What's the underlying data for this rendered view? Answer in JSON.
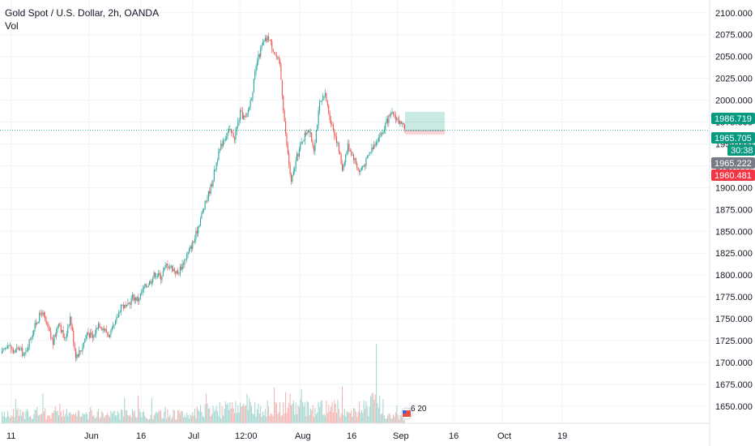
{
  "legend": {
    "symbol": "Gold Spot / U.S. Dollar, 2h, OANDA",
    "indicator": "Vol"
  },
  "chart_data": {
    "type": "candlestick",
    "ylim": [
      1635,
      2110
    ],
    "y_ticks": [
      1650,
      1675,
      1700,
      1725,
      1750,
      1775,
      1800,
      1825,
      1850,
      1875,
      1900,
      1925,
      1950,
      1975,
      2000,
      2025,
      2050,
      2075,
      2100
    ],
    "y_tick_labels": [
      "1650.000",
      "1675.000",
      "1700.000",
      "1725.000",
      "1750.000",
      "1775.000",
      "1800.000",
      "1825.000",
      "1850.000",
      "1875.000",
      "1900.000",
      "1925.000",
      "1950.000",
      "1975.000",
      "2000.000",
      "2025.000",
      "2050.000",
      "2075.000",
      "2100.000"
    ],
    "x_labels": [
      "11",
      "Jun",
      "16",
      "Jul",
      "12:00",
      "Aug",
      "16",
      "Sep",
      "16",
      "Oct",
      "19"
    ],
    "price_path": [
      [
        0,
        1710
      ],
      [
        5,
        1722
      ],
      [
        10,
        1712
      ],
      [
        15,
        1716
      ],
      [
        20,
        1708
      ],
      [
        25,
        1728
      ],
      [
        30,
        1745
      ],
      [
        35,
        1758
      ],
      [
        40,
        1740
      ],
      [
        45,
        1722
      ],
      [
        50,
        1748
      ],
      [
        55,
        1725
      ],
      [
        60,
        1752
      ],
      [
        65,
        1708
      ],
      [
        70,
        1715
      ],
      [
        75,
        1735
      ],
      [
        80,
        1728
      ],
      [
        85,
        1745
      ],
      [
        90,
        1738
      ],
      [
        95,
        1730
      ],
      [
        100,
        1745
      ],
      [
        105,
        1766
      ],
      [
        110,
        1762
      ],
      [
        115,
        1775
      ],
      [
        120,
        1772
      ],
      [
        125,
        1785
      ],
      [
        130,
        1792
      ],
      [
        135,
        1802
      ],
      [
        140,
        1798
      ],
      [
        145,
        1812
      ],
      [
        150,
        1808
      ],
      [
        155,
        1802
      ],
      [
        160,
        1815
      ],
      [
        165,
        1828
      ],
      [
        170,
        1842
      ],
      [
        175,
        1865
      ],
      [
        180,
        1885
      ],
      [
        185,
        1905
      ],
      [
        190,
        1935
      ],
      [
        195,
        1955
      ],
      [
        200,
        1965
      ],
      [
        205,
        1958
      ],
      [
        210,
        1985
      ],
      [
        215,
        1978
      ],
      [
        220,
        2005
      ],
      [
        225,
        2045
      ],
      [
        230,
        2065
      ],
      [
        235,
        2072
      ],
      [
        240,
        2055
      ],
      [
        245,
        2040
      ],
      [
        250,
        1960
      ],
      [
        255,
        1905
      ],
      [
        260,
        1935
      ],
      [
        265,
        1955
      ],
      [
        270,
        1968
      ],
      [
        275,
        1945
      ],
      [
        280,
        1995
      ],
      [
        285,
        2005
      ],
      [
        290,
        1975
      ],
      [
        295,
        1955
      ],
      [
        300,
        1922
      ],
      [
        305,
        1948
      ],
      [
        310,
        1935
      ],
      [
        315,
        1918
      ],
      [
        320,
        1928
      ],
      [
        325,
        1942
      ],
      [
        330,
        1955
      ],
      [
        335,
        1962
      ],
      [
        340,
        1978
      ],
      [
        345,
        1985
      ],
      [
        350,
        1975
      ],
      [
        355,
        1966
      ]
    ],
    "volume_path": [
      [
        0,
        0.3
      ],
      [
        10,
        0.45
      ],
      [
        20,
        0.35
      ],
      [
        30,
        0.5
      ],
      [
        40,
        0.4
      ],
      [
        50,
        0.55
      ],
      [
        60,
        0.35
      ],
      [
        70,
        0.4
      ],
      [
        80,
        0.45
      ],
      [
        90,
        0.38
      ],
      [
        100,
        0.42
      ],
      [
        110,
        0.35
      ],
      [
        120,
        0.4
      ],
      [
        130,
        0.38
      ],
      [
        140,
        0.35
      ],
      [
        150,
        0.4
      ],
      [
        160,
        0.35
      ],
      [
        170,
        0.42
      ],
      [
        180,
        0.55
      ],
      [
        190,
        0.5
      ],
      [
        200,
        0.62
      ],
      [
        210,
        0.55
      ],
      [
        220,
        0.7
      ],
      [
        230,
        0.65
      ],
      [
        240,
        0.58
      ],
      [
        250,
        0.85
      ],
      [
        260,
        0.7
      ],
      [
        270,
        0.65
      ],
      [
        280,
        0.75
      ],
      [
        290,
        0.6
      ],
      [
        300,
        0.68
      ],
      [
        310,
        0.55
      ],
      [
        320,
        0.72
      ],
      [
        330,
        0.85
      ],
      [
        340,
        0.45
      ],
      [
        355,
        0.2
      ]
    ],
    "volume_spike": {
      "bar": 330,
      "value": 1.0
    },
    "position": {
      "entry": 1965.222,
      "target": 1986.719,
      "stop": 1960.481
    },
    "price_tags": [
      {
        "label": "1986.719",
        "price": 1986.719,
        "color": "#089981"
      },
      {
        "label": "1965.705",
        "price": 1965.705,
        "color": "#089981"
      },
      {
        "label": "30:38",
        "price": 1952.0,
        "color": "#089981"
      },
      {
        "label": "1965.222",
        "price": 1965.222,
        "color": "#787b86"
      },
      {
        "label": "1960.481",
        "price": 1960.481,
        "color": "#f23645"
      }
    ],
    "grid": true,
    "colors": {
      "up": "#26a69a",
      "down": "#ef5350",
      "vol_up": "#a7d8d2",
      "vol_down": "#f5b7b4",
      "grid": "#f0f3fa"
    }
  },
  "event_badge": {
    "text": "6 20"
  }
}
